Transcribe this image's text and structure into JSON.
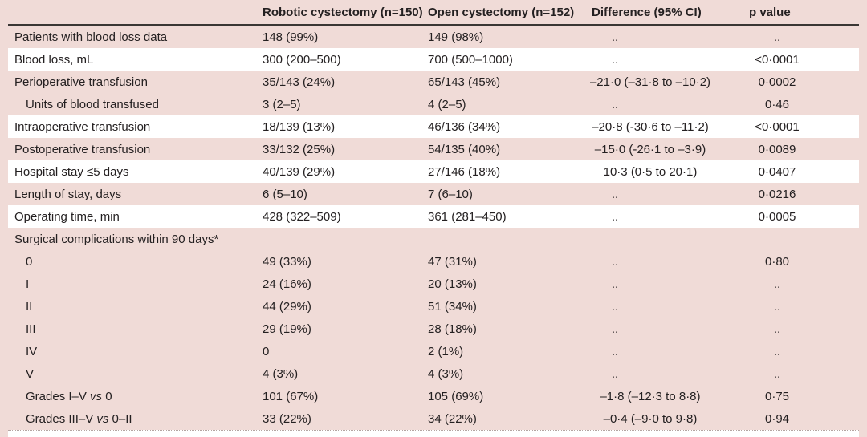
{
  "colors": {
    "row_pink": "#f0dbd7",
    "row_white": "#ffffff",
    "header_rule": "#3a3634",
    "text": "#242021"
  },
  "table": {
    "columns": {
      "label": "",
      "robotic": "Robotic cystectomy (n=150)",
      "open": "Open cystectomy (n=152)",
      "difference": "Difference (95% CI)",
      "p": "p value"
    },
    "rows": [
      {
        "label": "Patients with blood loss data",
        "robotic": "148 (99%)",
        "open": "149 (98%)",
        "difference": "..",
        "p": "..",
        "shade": "pink",
        "indent": false
      },
      {
        "label": "Blood loss, mL",
        "robotic": "300 (200–500)",
        "open": "700 (500–1000)",
        "difference": "..",
        "p": "<0·0001",
        "shade": "white",
        "indent": false
      },
      {
        "label": "Perioperative transfusion",
        "robotic": "35/143 (24%)",
        "open": "65/143 (45%)",
        "difference": "–21·0 (–31·8 to –10·2)",
        "p": "0·0002",
        "shade": "pink",
        "indent": false
      },
      {
        "label": "Units of blood transfused",
        "robotic": "3 (2–5)",
        "open": "4 (2–5)",
        "difference": "..",
        "p": "0·46",
        "shade": "pink",
        "indent": true
      },
      {
        "label": "Intraoperative transfusion",
        "robotic": "18/139 (13%)",
        "open": "46/136 (34%)",
        "difference": "–20·8 (-30·6 to –11·2)",
        "p": "<0·0001",
        "shade": "white",
        "indent": false
      },
      {
        "label": "Postoperative transfusion",
        "robotic": "33/132 (25%)",
        "open": "54/135 (40%)",
        "difference": "–15·0 (-26·1 to –3·9)",
        "p": "0·0089",
        "shade": "pink",
        "indent": false
      },
      {
        "label": "Hospital stay ≤5 days",
        "robotic": "40/139 (29%)",
        "open": "27/146 (18%)",
        "difference": "10·3 (0·5 to 20·1)",
        "p": "0·0407",
        "shade": "white",
        "indent": false
      },
      {
        "label": "Length of stay, days",
        "robotic": "6 (5–10)",
        "open": "7 (6–10)",
        "difference": "..",
        "p": "0·0216",
        "shade": "pink",
        "indent": false
      },
      {
        "label": "Operating time, min",
        "robotic": "428 (322–509)",
        "open": "361 (281–450)",
        "difference": "..",
        "p": "0·0005",
        "shade": "white",
        "indent": false
      },
      {
        "label": "Surgical complications within 90 days*",
        "robotic": "",
        "open": "",
        "difference": "",
        "p": "",
        "shade": "pink",
        "indent": false
      },
      {
        "label": "0",
        "robotic": "49 (33%)",
        "open": "47 (31%)",
        "difference": "..",
        "p": "0·80",
        "shade": "pink",
        "indent": true
      },
      {
        "label": "I",
        "robotic": "24 (16%)",
        "open": "20 (13%)",
        "difference": "..",
        "p": "..",
        "shade": "pink",
        "indent": true
      },
      {
        "label": "II",
        "robotic": "44 (29%)",
        "open": "51 (34%)",
        "difference": "..",
        "p": "..",
        "shade": "pink",
        "indent": true
      },
      {
        "label": "III",
        "robotic": "29 (19%)",
        "open": "28 (18%)",
        "difference": "..",
        "p": "..",
        "shade": "pink",
        "indent": true
      },
      {
        "label": "IV",
        "robotic": "0",
        "open": "2 (1%)",
        "difference": "..",
        "p": "..",
        "shade": "pink",
        "indent": true
      },
      {
        "label": "V",
        "robotic": "4 (3%)",
        "open": "4 (3%)",
        "difference": "..",
        "p": "..",
        "shade": "pink",
        "indent": true
      },
      {
        "label": "Grades I–V vs 0",
        "robotic": "101 (67%)",
        "open": "105 (69%)",
        "difference": "–1·8 (–12·3 to 8·8)",
        "p": "0·75",
        "shade": "pink",
        "indent": true
      },
      {
        "label": "Grades III–V vs 0–II",
        "robotic": "33 (22%)",
        "open": "34 (22%)",
        "difference": "–0·4 (–9·0 to 9·8)",
        "p": "0·94",
        "shade": "pink",
        "indent": true
      }
    ]
  }
}
